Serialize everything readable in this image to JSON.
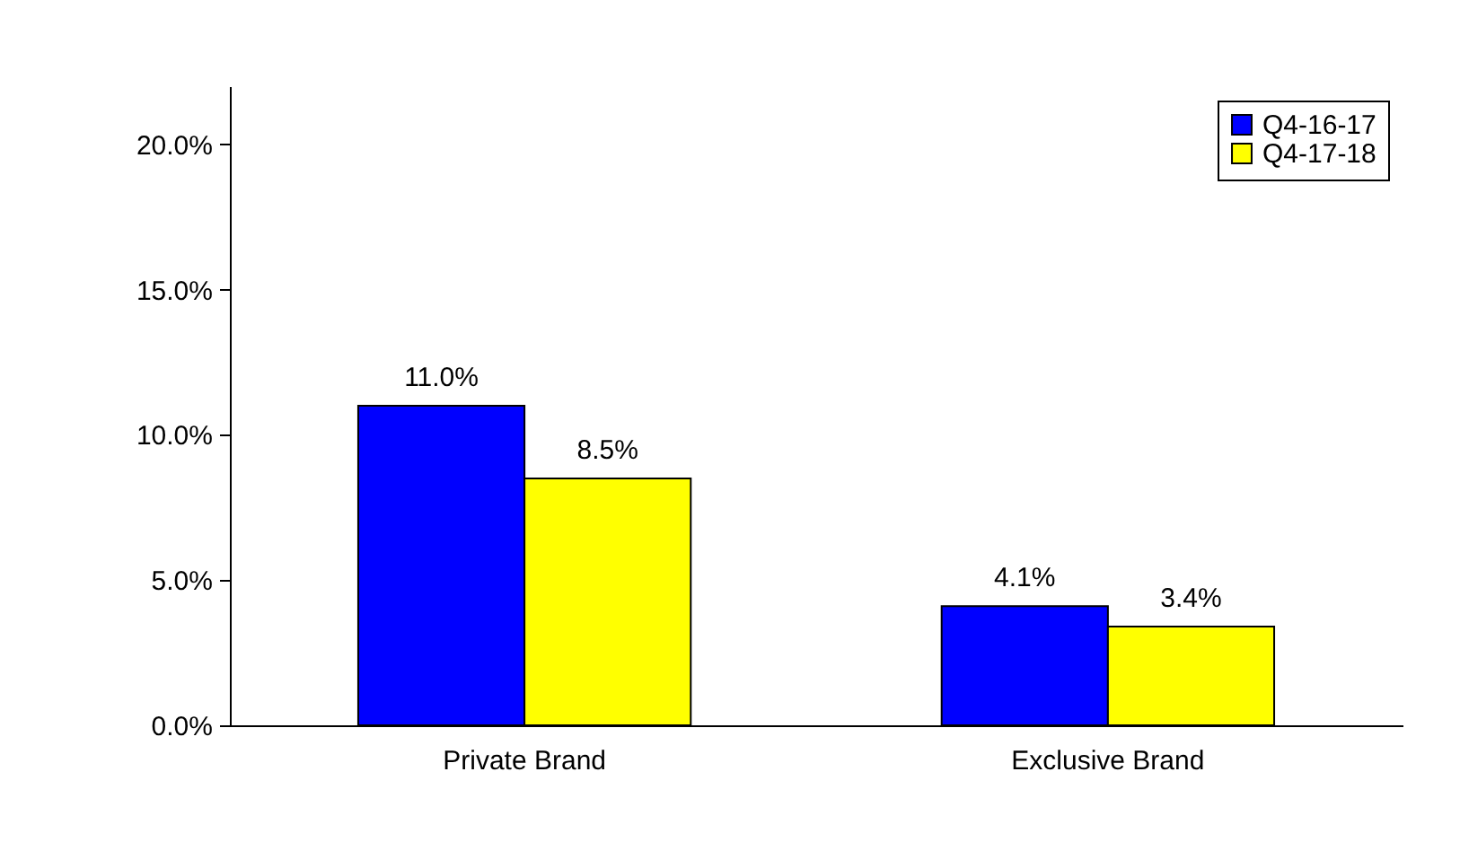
{
  "chart_data": {
    "type": "bar",
    "categories": [
      "Private Brand",
      "Exclusive Brand"
    ],
    "series": [
      {
        "name": "Q4-16-17",
        "color": "#0000ff",
        "values": [
          11.0,
          4.1
        ],
        "value_labels": [
          "11.0%",
          "4.1%"
        ]
      },
      {
        "name": "Q4-17-18",
        "color": "#ffff00",
        "values": [
          8.5,
          3.4
        ],
        "value_labels": [
          "8.5%",
          "3.4%"
        ]
      }
    ],
    "ylim": [
      0,
      22
    ],
    "yticks": [
      {
        "value": 0,
        "label": "0.0%"
      },
      {
        "value": 5,
        "label": "5.0%"
      },
      {
        "value": 10,
        "label": "10.0%"
      },
      {
        "value": 15,
        "label": "15.0%"
      },
      {
        "value": 20,
        "label": "20.0%"
      }
    ],
    "grid": false,
    "legend": "top right"
  }
}
